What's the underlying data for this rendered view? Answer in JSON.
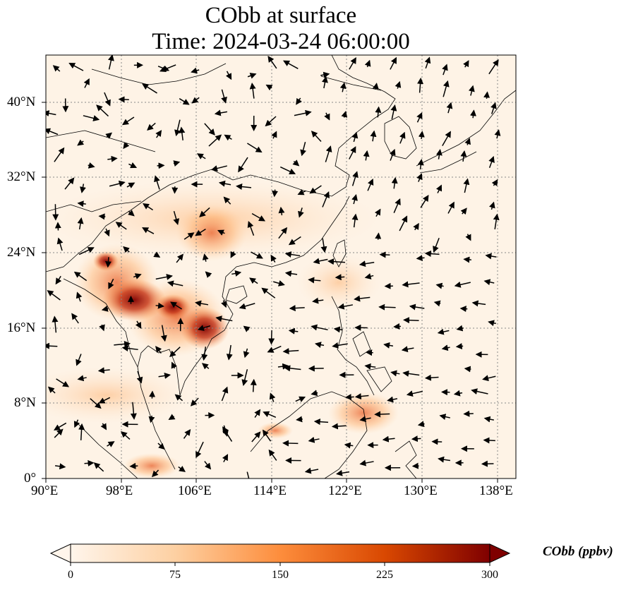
{
  "title": {
    "line1": "CObb at surface",
    "line2": "Time: 2024-03-24 06:00:00"
  },
  "axes": {
    "x_ticks": [
      "90°E",
      "98°E",
      "106°E",
      "114°E",
      "122°E",
      "130°E",
      "138°E"
    ],
    "y_ticks": [
      "40°N",
      "32°N",
      "24°N",
      "16°N",
      "8°N",
      "0°"
    ]
  },
  "map": {
    "lon_range": [
      90,
      140
    ],
    "lat_range": [
      0,
      45
    ],
    "field": "CObb",
    "units": "ppbv",
    "gridlines": true,
    "wind_vectors": true
  },
  "colorbar": {
    "ticks": [
      "0",
      "75",
      "150",
      "225",
      "300"
    ],
    "min": 0,
    "max": 300,
    "extend": "both",
    "label": "CObb (ppbv)",
    "colors": [
      "#fff5eb",
      "#fdd0a2",
      "#fd8d3c",
      "#d94801",
      "#8c0000",
      "#7f0000"
    ]
  }
}
